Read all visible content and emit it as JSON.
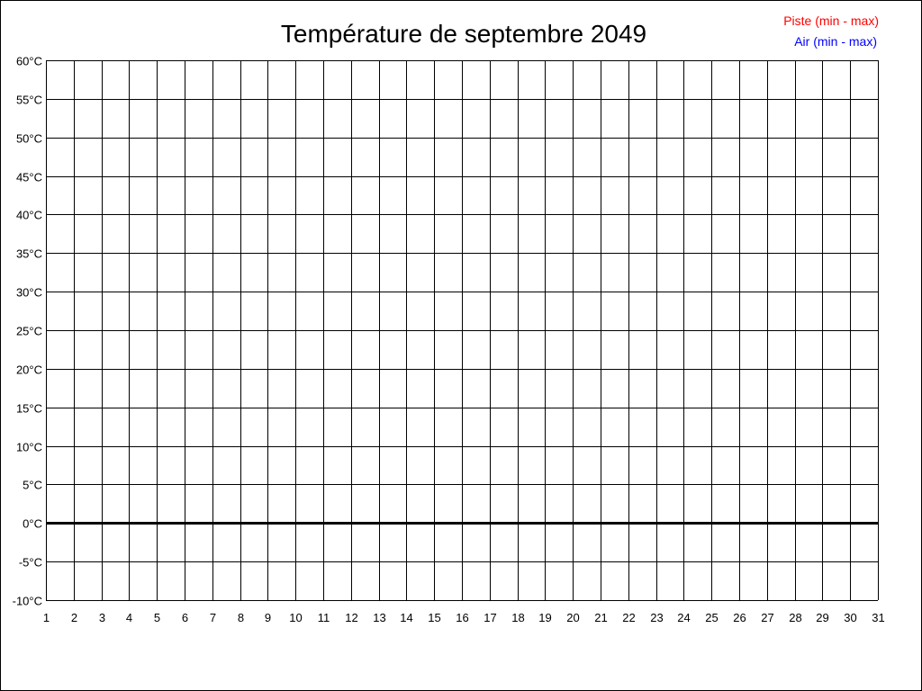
{
  "chart_data": {
    "type": "line",
    "title": "Température de septembre 2049",
    "xlabel": "",
    "ylabel": "",
    "x_ticks": [
      1,
      2,
      3,
      4,
      5,
      6,
      7,
      8,
      9,
      10,
      11,
      12,
      13,
      14,
      15,
      16,
      17,
      18,
      19,
      20,
      21,
      22,
      23,
      24,
      25,
      26,
      27,
      28,
      29,
      30,
      31
    ],
    "y_ticks": [
      "60°C",
      "55°C",
      "50°C",
      "45°C",
      "40°C",
      "35°C",
      "30°C",
      "25°C",
      "20°C",
      "15°C",
      "10°C",
      "5°C",
      "0°C",
      "-5°C",
      "-10°C"
    ],
    "xlim": [
      1,
      31
    ],
    "ylim": [
      -10,
      60
    ],
    "y_unit": "°C",
    "grid": true,
    "legend_position": "top-right",
    "series": [
      {
        "name": "Piste (min - max)",
        "color": "#ff0000",
        "values": []
      },
      {
        "name": "Air (min - max)",
        "color": "#0000ff",
        "values": []
      }
    ]
  }
}
